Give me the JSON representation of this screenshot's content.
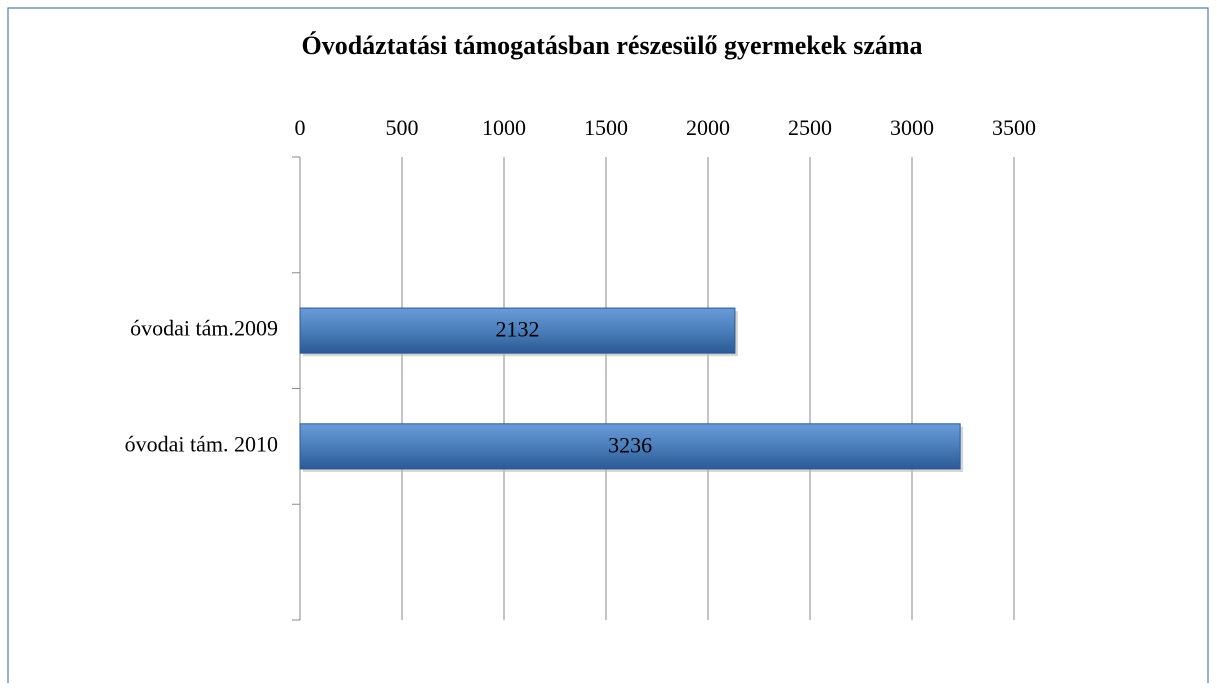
{
  "chart_data": {
    "type": "bar",
    "orientation": "horizontal",
    "title": "Óvodáztatási támogatásban részesülő gyermekek száma",
    "categories": [
      null,
      "óvodai tám.2009",
      "óvodai tám. 2010",
      null
    ],
    "values": [
      null,
      2132,
      3236,
      null
    ],
    "color": "#4a7ebb",
    "xlim": [
      0,
      3500
    ],
    "xticks": [
      0,
      500,
      1000,
      1500,
      2000,
      2500,
      3000,
      3500
    ],
    "grid": true
  }
}
